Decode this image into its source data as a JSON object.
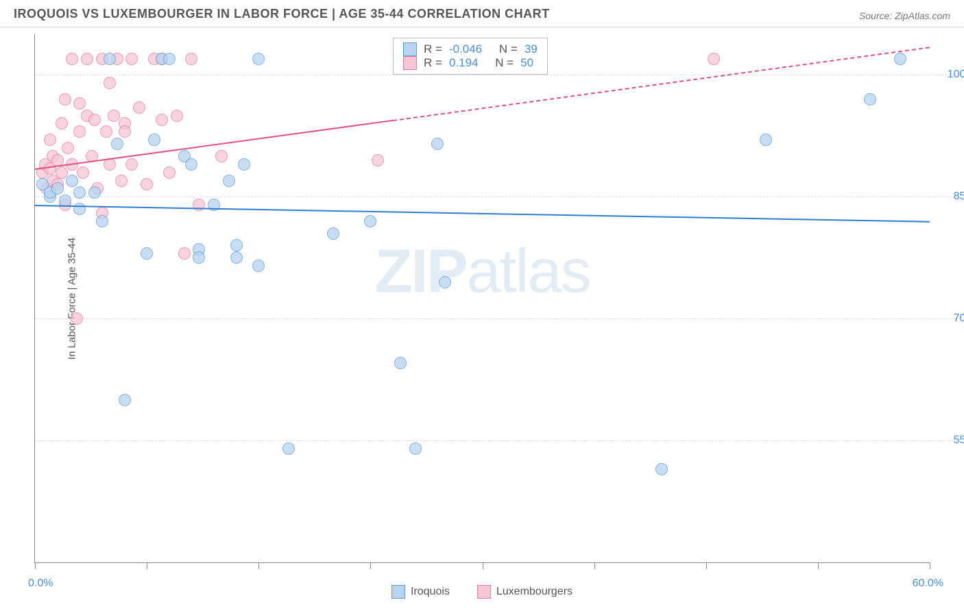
{
  "header": {
    "title": "IROQUOIS VS LUXEMBOURGER IN LABOR FORCE | AGE 35-44 CORRELATION CHART",
    "source": "Source: ZipAtlas.com"
  },
  "chart": {
    "type": "scatter",
    "y_axis_title": "In Labor Force | Age 35-44",
    "xlim": [
      0,
      60
    ],
    "ylim": [
      40,
      105
    ],
    "y_ticks": [
      55,
      70,
      85,
      100
    ],
    "y_tick_labels": [
      "55.0%",
      "70.0%",
      "85.0%",
      "100.0%"
    ],
    "x_ticks": [
      0,
      7.5,
      15,
      22.5,
      30,
      37.5,
      45,
      52.5,
      60
    ],
    "x_label_min": "0.0%",
    "x_label_max": "60.0%",
    "background_color": "#ffffff",
    "grid_color": "#dddddd",
    "marker_radius": 9,
    "series": [
      {
        "key": "iroquois",
        "label": "Iroquois",
        "fill": "#b8d4f0",
        "stroke": "#5a9bd8",
        "reg_color": "#2d7dd2",
        "R_label": "R =",
        "R": "-0.046",
        "N_label": "N =",
        "N": "39",
        "reg_line": {
          "x1": 0,
          "y1": 84.0,
          "x2": 60,
          "y2": 82.0
        },
        "points": [
          [
            0.5,
            86.5
          ],
          [
            1,
            85
          ],
          [
            1,
            85.5
          ],
          [
            1.5,
            86
          ],
          [
            2,
            84.5
          ],
          [
            2.5,
            87
          ],
          [
            3,
            85.5
          ],
          [
            3,
            83.5
          ],
          [
            4,
            85.5
          ],
          [
            4.5,
            82
          ],
          [
            5,
            102
          ],
          [
            5.5,
            91.5
          ],
          [
            6,
            60
          ],
          [
            7.5,
            78
          ],
          [
            8,
            92
          ],
          [
            8.5,
            102
          ],
          [
            9,
            102
          ],
          [
            10,
            90
          ],
          [
            10.5,
            89
          ],
          [
            11,
            78.5
          ],
          [
            11,
            77.5
          ],
          [
            12,
            84
          ],
          [
            13,
            87
          ],
          [
            13.5,
            77.5
          ],
          [
            13.5,
            79
          ],
          [
            14,
            89
          ],
          [
            15,
            102
          ],
          [
            15,
            76.5
          ],
          [
            17,
            54
          ],
          [
            20,
            80.5
          ],
          [
            22.5,
            82
          ],
          [
            24.5,
            64.5
          ],
          [
            25.5,
            54
          ],
          [
            27,
            91.5
          ],
          [
            27.5,
            74.5
          ],
          [
            42,
            51.5
          ],
          [
            49,
            92
          ],
          [
            56,
            97
          ],
          [
            58,
            102
          ]
        ]
      },
      {
        "key": "luxembourgers",
        "label": "Luxembourgers",
        "fill": "#f5c6d6",
        "stroke": "#e878a0",
        "reg_color": "#e05080",
        "R_label": "R =",
        "R": "0.194",
        "N_label": "N =",
        "N": "50",
        "reg_line": {
          "x1": 0,
          "y1": 88.5,
          "x2": 24,
          "y2": 94.5
        },
        "reg_line_ext": {
          "x1": 24,
          "y1": 94.5,
          "x2": 60,
          "y2": 103.5
        },
        "points": [
          [
            0.5,
            88
          ],
          [
            0.7,
            89
          ],
          [
            0.8,
            86
          ],
          [
            1,
            88.5
          ],
          [
            1,
            92
          ],
          [
            1.2,
            87
          ],
          [
            1.2,
            90
          ],
          [
            1.5,
            89.5
          ],
          [
            1.5,
            86.5
          ],
          [
            1.8,
            94
          ],
          [
            1.8,
            88
          ],
          [
            2,
            84
          ],
          [
            2,
            97
          ],
          [
            2.2,
            91
          ],
          [
            2.5,
            102
          ],
          [
            2.5,
            89
          ],
          [
            2.8,
            70
          ],
          [
            3,
            93
          ],
          [
            3,
            96.5
          ],
          [
            3.2,
            88
          ],
          [
            3.5,
            95
          ],
          [
            3.5,
            102
          ],
          [
            3.8,
            90
          ],
          [
            4,
            94.5
          ],
          [
            4.2,
            86
          ],
          [
            4.5,
            102
          ],
          [
            4.5,
            83
          ],
          [
            4.8,
            93
          ],
          [
            5,
            89
          ],
          [
            5,
            99
          ],
          [
            5.3,
            95
          ],
          [
            5.5,
            102
          ],
          [
            5.8,
            87
          ],
          [
            6,
            94
          ],
          [
            6,
            93
          ],
          [
            6.5,
            102
          ],
          [
            6.5,
            89
          ],
          [
            7,
            96
          ],
          [
            7.5,
            86.5
          ],
          [
            8,
            102
          ],
          [
            8.5,
            102
          ],
          [
            8.5,
            94.5
          ],
          [
            9,
            88
          ],
          [
            9.5,
            95
          ],
          [
            10,
            78
          ],
          [
            10.5,
            102
          ],
          [
            11,
            84
          ],
          [
            12.5,
            90
          ],
          [
            23,
            89.5
          ],
          [
            45.5,
            102
          ]
        ]
      }
    ],
    "stats_box": {
      "border_color": "#bbbbbb"
    },
    "bottom_legend": [
      {
        "key": "iroquois"
      },
      {
        "key": "luxembourgers"
      }
    ],
    "watermark": {
      "zip": "ZIP",
      "atlas": "atlas"
    }
  }
}
